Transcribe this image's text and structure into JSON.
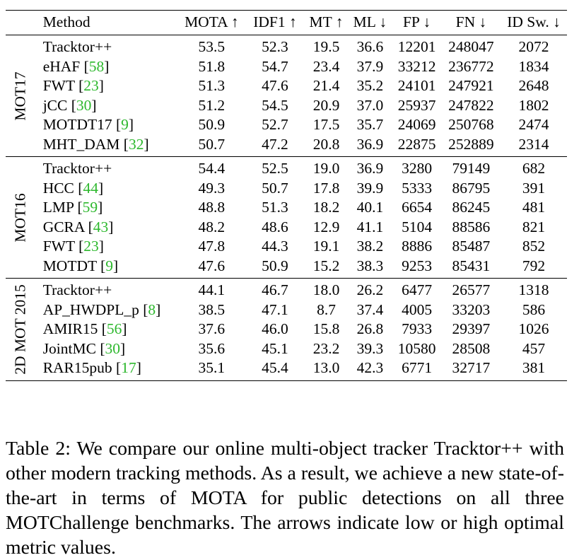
{
  "table": {
    "headers": {
      "method": "Method",
      "mota": "MOTA ↑",
      "idf1": "IDF1 ↑",
      "mt": "MT ↑",
      "ml": "ML ↓",
      "fp": "FP ↓",
      "fn": "FN ↓",
      "idsw": "ID Sw. ↓"
    },
    "groups": [
      {
        "label": "MOT17",
        "rows": [
          {
            "method": "Tracktor++",
            "cite": "",
            "mota": "53.5",
            "idf1": "52.3",
            "mt": "19.5",
            "ml": "36.6",
            "fp": "12201",
            "fn": "248047",
            "idsw": "2072",
            "bold": [
              "mota",
              "fp"
            ]
          },
          {
            "method": "eHAF",
            "cite": "58",
            "mota": "51.8",
            "idf1": "54.7",
            "mt": "23.4",
            "ml": "37.9",
            "fp": "33212",
            "fn": "236772",
            "idsw": "1834",
            "bold": [
              "idf1",
              "mt",
              "fn"
            ]
          },
          {
            "method": "FWT",
            "cite": "23",
            "mota": "51.3",
            "idf1": "47.6",
            "mt": "21.4",
            "ml": "35.2",
            "fp": "24101",
            "fn": "247921",
            "idsw": "2648",
            "bold": []
          },
          {
            "method": "jCC",
            "cite": "30",
            "mota": "51.2",
            "idf1": "54.5",
            "mt": "20.9",
            "ml": "37.0",
            "fp": "25937",
            "fn": "247822",
            "idsw": "1802",
            "bold": [
              "idsw"
            ]
          },
          {
            "method": "MOTDT17",
            "cite": "9",
            "mota": "50.9",
            "idf1": "52.7",
            "mt": "17.5",
            "ml": "35.7",
            "fp": "24069",
            "fn": "250768",
            "idsw": "2474",
            "bold": []
          },
          {
            "method": "MHT_DAM",
            "cite": "32",
            "mota": "50.7",
            "idf1": "47.2",
            "mt": "20.8",
            "ml": "36.9",
            "fp": "22875",
            "fn": "252889",
            "idsw": "2314",
            "bold": []
          }
        ]
      },
      {
        "label": "MOT16",
        "rows": [
          {
            "method": "Tracktor++",
            "cite": "",
            "mota": "54.4",
            "idf1": "52.5",
            "mt": "19.0",
            "ml": "36.9",
            "fp": "3280",
            "fn": "79149",
            "idsw": "682",
            "bold": [
              "mota",
              "idf1",
              "ml",
              "fp",
              "fn"
            ]
          },
          {
            "method": "HCC",
            "cite": "44",
            "mota": "49.3",
            "idf1": "50.7",
            "mt": "17.8",
            "ml": "39.9",
            "fp": "5333",
            "fn": "86795",
            "idsw": "391",
            "bold": [
              "idsw"
            ]
          },
          {
            "method": "LMP",
            "cite": "59",
            "mota": "48.8",
            "idf1": "51.3",
            "mt": "18.2",
            "ml": "40.1",
            "fp": "6654",
            "fn": "86245",
            "idsw": "481",
            "bold": []
          },
          {
            "method": "GCRA",
            "cite": "43",
            "mota": "48.2",
            "idf1": "48.6",
            "mt": "12.9",
            "ml": "41.1",
            "fp": "5104",
            "fn": "88586",
            "idsw": "821",
            "bold": []
          },
          {
            "method": "FWT",
            "cite": "23",
            "mota": "47.8",
            "idf1": "44.3",
            "mt": "19.1",
            "ml": "38.2",
            "fp": "8886",
            "fn": "85487",
            "idsw": "852",
            "bold": [
              "mt"
            ]
          },
          {
            "method": "MOTDT",
            "cite": "9",
            "mota": "47.6",
            "idf1": "50.9",
            "mt": "15.2",
            "ml": "38.3",
            "fp": "9253",
            "fn": "85431",
            "idsw": "792",
            "bold": []
          }
        ]
      },
      {
        "label": "2D MOT 2015",
        "rows": [
          {
            "method": "Tracktor++",
            "cite": "",
            "mota": "44.1",
            "idf1": "46.7",
            "mt": "18.0",
            "ml": "26.2",
            "fp": "6477",
            "fn": "26577",
            "idsw": "1318",
            "bold": [
              "mota",
              "ml",
              "fn"
            ]
          },
          {
            "method": "AP_HWDPL_p",
            "cite": "8",
            "mota": "38.5",
            "idf1": "47.1",
            "mt": "8.7",
            "ml": "37.4",
            "fp": "4005",
            "fn": "33203",
            "idsw": "586",
            "bold": [
              "idf1",
              "fp"
            ]
          },
          {
            "method": "AMIR15",
            "cite": "56",
            "mota": "37.6",
            "idf1": "46.0",
            "mt": "15.8",
            "ml": "26.8",
            "fp": "7933",
            "fn": "29397",
            "idsw": "1026",
            "bold": []
          },
          {
            "method": "JointMC",
            "cite": "30",
            "mota": "35.6",
            "idf1": "45.1",
            "mt": "23.2",
            "ml": "39.3",
            "fp": "10580",
            "fn": "28508",
            "idsw": "457",
            "bold": [
              "mt"
            ]
          },
          {
            "method": "RAR15pub",
            "cite": "17",
            "mota": "35.1",
            "idf1": "45.4",
            "mt": "13.0",
            "ml": "42.3",
            "fp": "6771",
            "fn": "32717",
            "idsw": "381",
            "bold": [
              "idsw"
            ]
          }
        ]
      }
    ]
  },
  "caption": {
    "text": "Table 2: We compare our online multi-object tracker Tracktor++ with other modern tracking methods. As a result, we achieve a new state-of-the-art in terms of MOTA for public detections on all three MOTChallenge benchmarks. The arrows indicate low or high optimal metric values."
  },
  "colors": {
    "citation": "#2db82d",
    "text": "#000000",
    "background": "#ffffff"
  }
}
